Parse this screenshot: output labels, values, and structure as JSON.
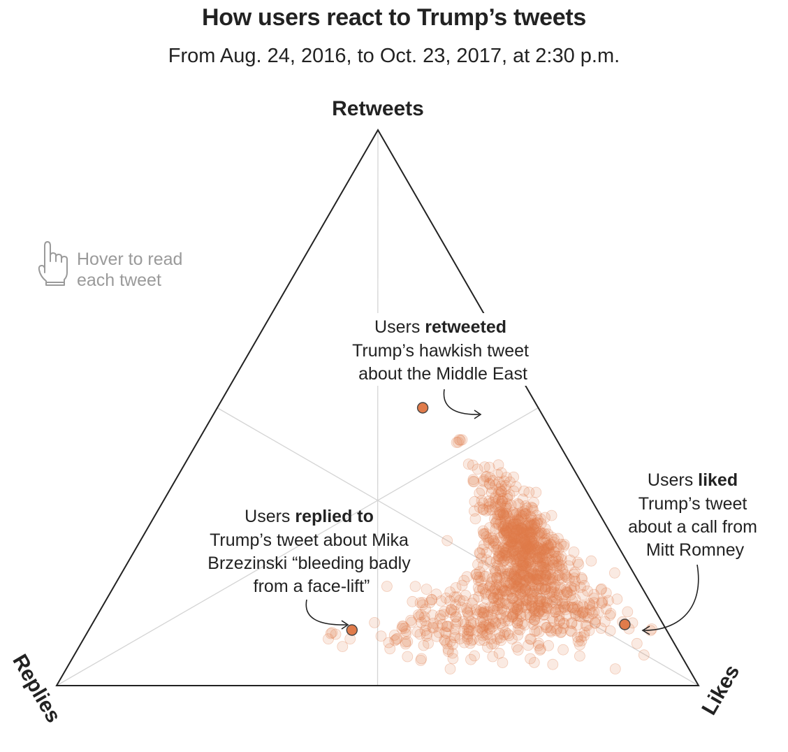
{
  "title": "How users react to Trump’s tweets",
  "subtitle": "From Aug. 24, 2016, to Oct. 23, 2017, at 2:30 p.m.",
  "hover_hint": {
    "line1": "Hover to read",
    "line2": "each tweet",
    "icon": "pointing-hand-icon"
  },
  "colors": {
    "dot": "#e07b4a",
    "dot_stroke": "#444444",
    "triangle": "#222222",
    "grid": "#d4d4d4",
    "hint": "#9a9a9a"
  },
  "chart_data": {
    "type": "scatter",
    "subtype": "ternary",
    "axes": {
      "top": "Retweets",
      "bottom_left": "Replies",
      "bottom_right": "Likes"
    },
    "highlights": [
      {
        "name": "retweeted",
        "retweets": 0.5,
        "replies": 0.18,
        "likes": 0.32,
        "label_parts": [
          "Users ",
          "retweeted",
          "Trump’s hawkish tweet",
          "about the Middle East"
        ]
      },
      {
        "name": "replied",
        "retweets": 0.1,
        "replies": 0.49,
        "likes": 0.41,
        "label_parts": [
          "Users ",
          "replied to",
          "Trump’s tweet about Mika",
          "Brzezinski “bleeding badly",
          "from a face-lift”"
        ]
      },
      {
        "name": "liked",
        "retweets": 0.11,
        "replies": 0.06,
        "likes": 0.83,
        "label_parts": [
          "Users ",
          "liked",
          "Trump’s tweet",
          "about a call from",
          "Mitt Romney"
        ]
      }
    ],
    "cloud": [
      {
        "retweets": 0.44,
        "replies": 0.15,
        "likes": 0.41,
        "spread": 0.006,
        "count": 5
      },
      {
        "retweets": 0.38,
        "replies": 0.14,
        "likes": 0.48,
        "spread": 0.015,
        "count": 18
      },
      {
        "retweets": 0.33,
        "replies": 0.13,
        "likes": 0.54,
        "spread": 0.025,
        "count": 70
      },
      {
        "retweets": 0.28,
        "replies": 0.14,
        "likes": 0.58,
        "spread": 0.025,
        "count": 160
      },
      {
        "retweets": 0.25,
        "replies": 0.14,
        "likes": 0.61,
        "spread": 0.025,
        "count": 130
      },
      {
        "retweets": 0.22,
        "replies": 0.15,
        "likes": 0.63,
        "spread": 0.03,
        "count": 160
      },
      {
        "retweets": 0.18,
        "replies": 0.18,
        "likes": 0.64,
        "spread": 0.04,
        "count": 140
      },
      {
        "retweets": 0.14,
        "replies": 0.2,
        "likes": 0.66,
        "spread": 0.035,
        "count": 160
      },
      {
        "retweets": 0.12,
        "replies": 0.28,
        "likes": 0.6,
        "spread": 0.035,
        "count": 130
      },
      {
        "retweets": 0.1,
        "replies": 0.36,
        "likes": 0.54,
        "spread": 0.03,
        "count": 60
      },
      {
        "retweets": 0.09,
        "replies": 0.42,
        "likes": 0.49,
        "spread": 0.02,
        "count": 14
      },
      {
        "retweets": 0.09,
        "replies": 0.52,
        "likes": 0.39,
        "spread": 0.012,
        "count": 6
      },
      {
        "retweets": 0.14,
        "replies": 0.11,
        "likes": 0.75,
        "spread": 0.03,
        "count": 90
      }
    ]
  }
}
